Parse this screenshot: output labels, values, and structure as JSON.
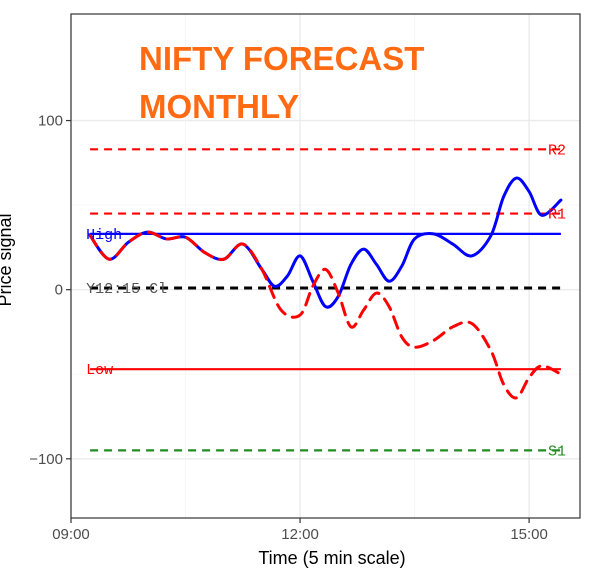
{
  "chart_data": {
    "type": "line",
    "title": "NIFTY FORECAST MONTHLY",
    "title_lines": [
      "NIFTY FORECAST",
      "MONTHLY"
    ],
    "title_color": "#ff6a13",
    "xlabel": "Time (5 min scale)",
    "ylabel": "Price signal",
    "x_ticks": [
      "09:00",
      "12:00",
      "15:00"
    ],
    "y_ticks": [
      -100,
      0,
      100
    ],
    "xlim": [
      "09:00",
      "15:40"
    ],
    "ylim": [
      -135,
      163
    ],
    "grid": true,
    "series": [
      {
        "color": "#0000ff",
        "style": "solid",
        "x": [
          "09:15",
          "09:30",
          "09:45",
          "10:00",
          "10:15",
          "10:30",
          "10:45",
          "11:00",
          "11:15",
          "11:30",
          "11:40",
          "11:50",
          "12:00",
          "12:10",
          "12:20",
          "12:30",
          "12:40",
          "12:50",
          "13:00",
          "13:10",
          "13:20",
          "13:30",
          "13:45",
          "14:00",
          "14:15",
          "14:30",
          "14:40",
          "14:50",
          "15:00",
          "15:10",
          "15:25"
        ],
        "y": [
          32,
          18,
          28,
          34,
          30,
          31,
          22,
          18,
          27,
          12,
          2,
          8,
          20,
          5,
          -10,
          -4,
          15,
          24,
          15,
          5,
          14,
          30,
          33,
          27,
          20,
          32,
          55,
          66,
          58,
          44,
          53
        ]
      },
      {
        "color": "#ff0000",
        "style": "dashed",
        "x": [
          "09:15",
          "09:30",
          "09:45",
          "10:00",
          "10:15",
          "10:30",
          "10:45",
          "11:00",
          "11:15",
          "11:30",
          "11:45",
          "12:00",
          "12:10",
          "12:20",
          "12:30",
          "12:40",
          "12:50",
          "13:00",
          "13:10",
          "13:20",
          "13:30",
          "13:45",
          "14:00",
          "14:15",
          "14:30",
          "14:40",
          "14:50",
          "15:00",
          "15:10",
          "15:25"
        ],
        "y": [
          32,
          18,
          28,
          34,
          30,
          31,
          22,
          18,
          27,
          12,
          -12,
          -15,
          2,
          12,
          -2,
          -22,
          -12,
          -2,
          -10,
          -28,
          -34,
          -30,
          -22,
          -20,
          -36,
          -56,
          -64,
          -52,
          -45,
          -50
        ]
      }
    ],
    "reference_lines": [
      {
        "label": "R2",
        "y": 83,
        "color": "#ff0000",
        "style": "dashed"
      },
      {
        "label": "R1",
        "y": 45,
        "color": "#ff0000",
        "style": "dashed"
      },
      {
        "label": "High",
        "y": 33,
        "color": "#0000ff",
        "style": "solid"
      },
      {
        "label": "Y12:15 Cl",
        "y": 1,
        "color": "#000000",
        "style": "dashed"
      },
      {
        "label": "Low",
        "y": -47,
        "color": "#ff0000",
        "style": "solid"
      },
      {
        "label": "S1",
        "y": -95,
        "color": "#228b22",
        "style": "dashed"
      }
    ],
    "reference_x_range": [
      "09:15",
      "15:25"
    ]
  }
}
